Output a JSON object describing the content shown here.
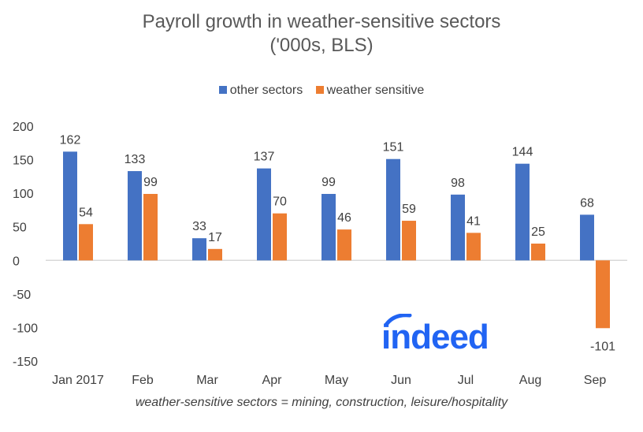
{
  "title_line1": "Payroll growth in weather-sensitive sectors",
  "title_line2": "('000s, BLS)",
  "footnote": "weather-sensitive sectors = mining, construction, leisure/hospitality",
  "logo_text": "indeed",
  "colors": {
    "other": "#4472c4",
    "weather": "#ed7d31",
    "axis": "#d9d9d9",
    "logo": "#2164f3"
  },
  "chart_data": {
    "type": "bar",
    "categories": [
      "Jan 2017",
      "Feb",
      "Mar",
      "Apr",
      "May",
      "Jun",
      "Jul",
      "Aug",
      "Sep"
    ],
    "series": [
      {
        "name": "other sectors",
        "values": [
          162,
          133,
          33,
          137,
          99,
          151,
          98,
          144,
          68
        ]
      },
      {
        "name": "weather sensitive",
        "values": [
          54,
          99,
          17,
          70,
          46,
          59,
          41,
          25,
          -101
        ]
      }
    ],
    "yticks": [
      200,
      150,
      100,
      50,
      0,
      -50,
      -100,
      -150
    ],
    "ylim": [
      -150,
      200
    ],
    "grid": false,
    "legend_position": "top"
  }
}
